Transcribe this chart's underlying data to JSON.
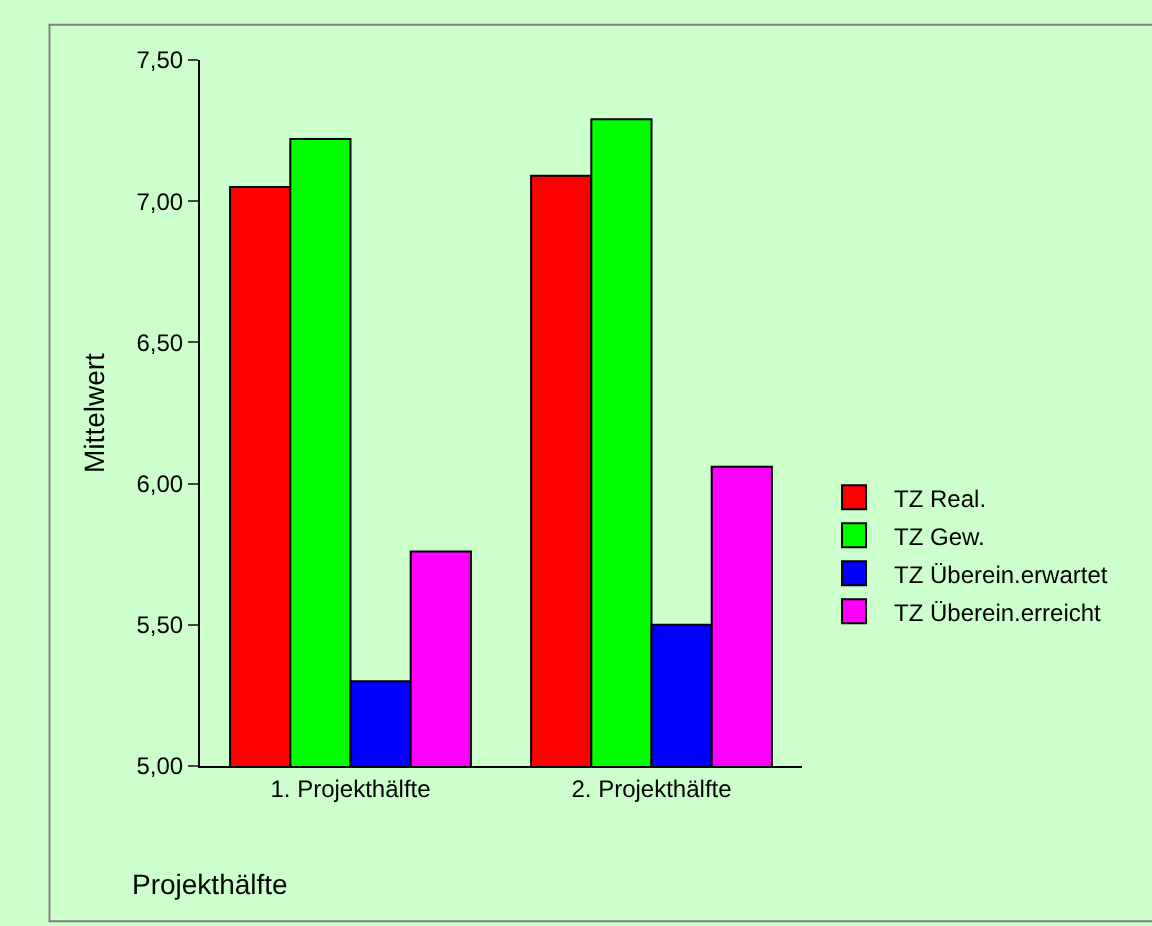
{
  "chart_data": {
    "type": "bar",
    "xlabel": "Projekthälfte",
    "ylabel": "Mittelwert",
    "categories": [
      "1. Projekthälfte",
      "2. Projekthälfte"
    ],
    "series": [
      {
        "name": "TZ Real.",
        "color": "#ff0000",
        "values": [
          7.05,
          7.09
        ]
      },
      {
        "name": "TZ Gew.",
        "color": "#00ff00",
        "values": [
          7.22,
          7.29
        ]
      },
      {
        "name": "TZ Überein.erwartet",
        "color": "#0000ff",
        "values": [
          5.3,
          5.5
        ]
      },
      {
        "name": "TZ Überein.erreicht",
        "color": "#ff00ff",
        "values": [
          5.76,
          6.06
        ]
      }
    ],
    "ylim": [
      5.0,
      7.5
    ],
    "yticks": [
      {
        "value": 5.0,
        "label": "5,00"
      },
      {
        "value": 5.5,
        "label": "5,50"
      },
      {
        "value": 6.0,
        "label": "6,00"
      },
      {
        "value": 6.5,
        "label": "6,50"
      },
      {
        "value": 7.0,
        "label": "7,00"
      },
      {
        "value": 7.5,
        "label": "7,50"
      }
    ],
    "grid": false,
    "legend": "right"
  }
}
